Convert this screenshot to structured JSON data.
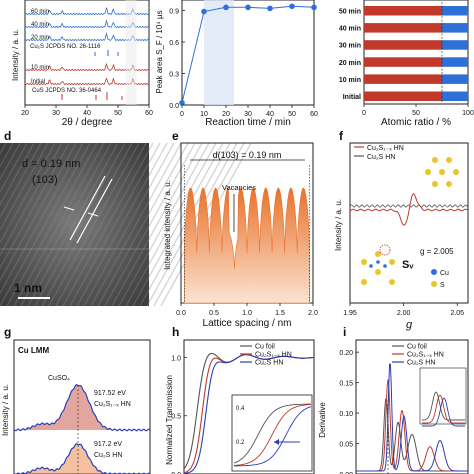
{
  "chart_data": [
    {
      "panel": "a",
      "type": "line",
      "xlabel": "2θ / degree",
      "ylabel": "Intensity / a. u.",
      "xticks": [
        20,
        30,
        40,
        50,
        60
      ],
      "xlim": [
        20,
        60
      ],
      "series": [
        {
          "name": "60 min"
        },
        {
          "name": "40 min"
        },
        {
          "name": "20 min"
        },
        {
          "name": "10 min"
        },
        {
          "name": "Initial"
        }
      ],
      "annotations": [
        "Cu₂S JCPDS NO. 26-1116",
        "CuS JCPDS NO. 36-0464"
      ]
    },
    {
      "panel": "b",
      "type": "line",
      "xlabel": "Reaction time / min",
      "ylabel": "Peak area S_F / 10⁴ μs",
      "x": [
        0,
        10,
        20,
        30,
        40,
        50,
        60
      ],
      "values": [
        0.02,
        0.89,
        0.93,
        0.93,
        0.92,
        0.94,
        0.93
      ],
      "xlim": [
        0,
        60
      ],
      "ylim": [
        0,
        1.0
      ],
      "yticks": [
        "0.0",
        "0.3",
        "0.6",
        "0.9"
      ],
      "xticks": [
        "0",
        "10",
        "20",
        "30",
        "40",
        "50",
        "60"
      ]
    },
    {
      "panel": "c",
      "type": "bar",
      "xlabel": "Atomic ratio / %",
      "xlim": [
        0,
        100
      ],
      "xticks": [
        "0",
        "50",
        "100"
      ],
      "categories": [
        "50 min",
        "40 min",
        "30 min",
        "20 min",
        "10 min",
        "Initial"
      ],
      "series": [
        {
          "values": [
            75,
            75,
            75,
            75,
            75,
            75
          ],
          "color": "#c0392b"
        },
        {
          "values": [
            25,
            25,
            25,
            25,
            25,
            25
          ],
          "color": "#2e6fd8"
        }
      ]
    },
    {
      "panel": "d",
      "type": "image",
      "annotations": [
        "d = 0.19 nm",
        "(103)"
      ],
      "scale_bar": "1 nm"
    },
    {
      "panel": "e",
      "type": "line",
      "title": "d(103) = 0.19 nm",
      "xlabel": "Lattice spacing / nm",
      "ylabel": "Integrated intensity / a. u.",
      "xticks": [
        "0.0",
        "0.5",
        "1.0",
        "1.5",
        "2.0"
      ],
      "xlim": [
        0,
        2.0
      ],
      "annotations": [
        "Vacancies"
      ]
    },
    {
      "panel": "f",
      "type": "line",
      "xlabel": "g",
      "ylabel": "Intensity / a. u.",
      "xticks": [
        "1.95",
        "2.00",
        "2.05"
      ],
      "xlim": [
        1.95,
        2.06
      ],
      "series": [
        {
          "name": "Cu₂S₁₋ₓ HN",
          "color": "#c0392b"
        },
        {
          "name": "Cu₂S HN",
          "color": "#555555"
        }
      ],
      "annotations": [
        "g = 2.005",
        "Sᵥ",
        "Cu",
        "S"
      ]
    },
    {
      "panel": "g",
      "type": "line",
      "title": "Cu LMM",
      "ylabel": "Intensity / a. u.",
      "annotations": [
        "CuSO₄",
        "917.52 eV",
        "Cu₂S₁₋ₓ HN",
        "917.2 eV",
        "Cu₂S HN"
      ]
    },
    {
      "panel": "h",
      "type": "line",
      "ylabel": "Normalized Transmission",
      "yticks": [
        "0.0",
        "0.5",
        "1.0"
      ],
      "inset_yticks": [
        "0.4",
        "0.2"
      ],
      "series": [
        {
          "name": "Cu foil",
          "color": "#555555"
        },
        {
          "name": "Cu₂S₁₋ₓ HN",
          "color": "#c0392b"
        },
        {
          "name": "Cu₂S HN",
          "color": "#2c3eb8"
        }
      ]
    },
    {
      "panel": "i",
      "type": "line",
      "ylabel": "Derivative",
      "yticks": [
        "0.00",
        "0.05",
        "0.10",
        "0.15",
        "0.20"
      ],
      "series": [
        {
          "name": "Cu foil",
          "color": "#555555"
        },
        {
          "name": "Cu₂S₁₋ₓ HN",
          "color": "#c0392b"
        },
        {
          "name": "Cu₂S HN",
          "color": "#2c3eb8"
        }
      ]
    }
  ]
}
